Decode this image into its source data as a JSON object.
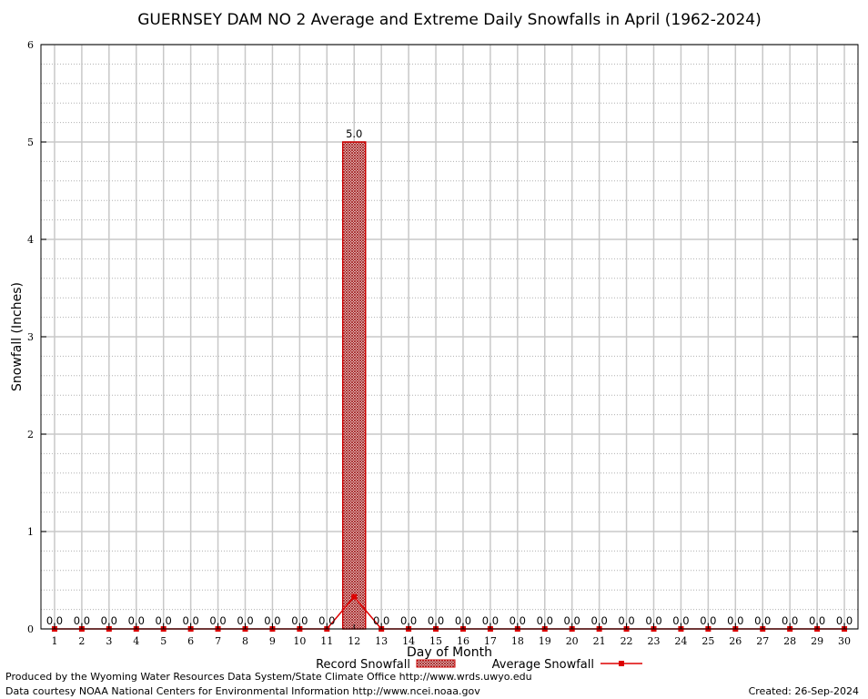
{
  "chart_data": {
    "type": "bar",
    "title": "GUERNSEY DAM NO 2 Average and Extreme Daily Snowfalls in April (1962-2024)",
    "xlabel": "Day of Month",
    "ylabel": "Snowfall (Inches)",
    "ylim": [
      0,
      6
    ],
    "yticks": [
      "0",
      "1",
      "2",
      "3",
      "4",
      "5",
      "6"
    ],
    "categories": [
      "1",
      "2",
      "3",
      "4",
      "5",
      "6",
      "7",
      "8",
      "9",
      "10",
      "11",
      "12",
      "13",
      "14",
      "15",
      "16",
      "17",
      "18",
      "19",
      "20",
      "21",
      "22",
      "23",
      "24",
      "25",
      "26",
      "27",
      "28",
      "29",
      "30"
    ],
    "series": [
      {
        "name": "Record Snowfall",
        "type": "bar",
        "color": "#cc0000",
        "values": [
          0,
          0,
          0,
          0,
          0,
          0,
          0,
          0,
          0,
          0,
          0,
          5.0,
          0,
          0,
          0,
          0,
          0,
          0,
          0,
          0,
          0,
          0,
          0,
          0,
          0,
          0,
          0,
          0,
          0,
          0
        ],
        "labels": [
          "0.0",
          "0.0",
          "0.0",
          "0.0",
          "0.0",
          "0.0",
          "0.0",
          "0.0",
          "0.0",
          "0.0",
          "0.0",
          "5.0",
          "0.0",
          "0.0",
          "0.0",
          "0.0",
          "0.0",
          "0.0",
          "0.0",
          "0.0",
          "0.0",
          "0.0",
          "0.0",
          "0.0",
          "0.0",
          "0.0",
          "0.0",
          "0.0",
          "0.0",
          "0.0"
        ]
      },
      {
        "name": "Average Snowfall",
        "type": "line",
        "color": "#dd0000",
        "values": [
          0,
          0,
          0,
          0,
          0,
          0,
          0,
          0,
          0,
          0,
          0,
          0.33,
          0,
          0,
          0,
          0,
          0,
          0,
          0,
          0,
          0,
          0,
          0,
          0,
          0,
          0,
          0,
          0,
          0,
          0
        ]
      }
    ],
    "grid": true,
    "legend": "bottom-center"
  },
  "footer": {
    "produced_by": "Produced by the Wyoming Water Resources Data System/State Climate Office http://www.wrds.uwyo.edu",
    "courtesy": "Data courtesy NOAA National Centers for Environmental Information http://www.ncei.noaa.gov",
    "created": "Created: 26-Sep-2024"
  }
}
